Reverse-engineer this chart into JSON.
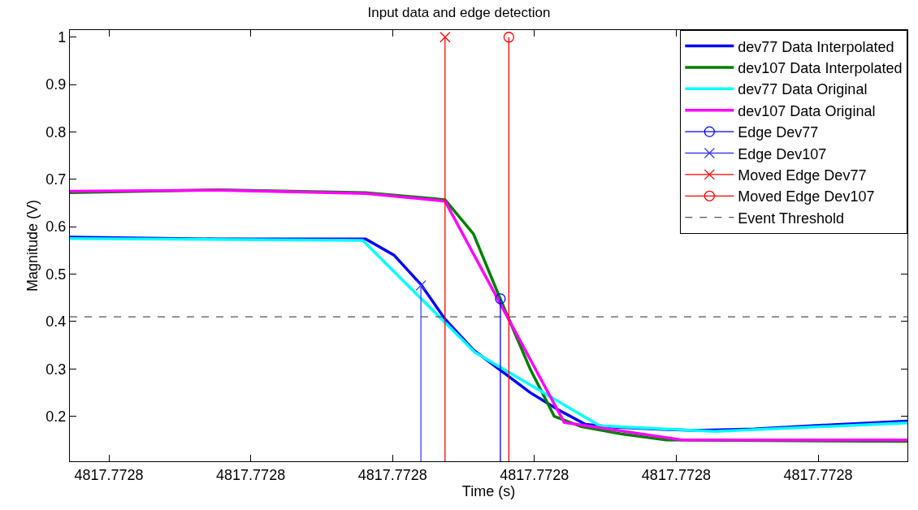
{
  "chart_data": {
    "type": "line",
    "title": "Input data and edge detection",
    "xlabel": "Time (s)",
    "ylabel": "Magnitude (V)",
    "xlim": [
      4817.77275725,
      4817.7728163
    ],
    "ylim": [
      0.105,
      1.015
    ],
    "xticks": [
      {
        "value": 4817.77276,
        "label": "4817.7728"
      },
      {
        "value": 4817.77277,
        "label": "4817.7728"
      },
      {
        "value": 4817.77278,
        "label": "4817.7728"
      },
      {
        "value": 4817.77279,
        "label": "4817.7728"
      },
      {
        "value": 4817.7728,
        "label": "4817.7728"
      },
      {
        "value": 4817.77281,
        "label": "4817.7728"
      }
    ],
    "yticks": [
      0.2,
      0.3,
      0.4,
      0.5,
      0.6,
      0.7,
      0.8,
      0.9,
      1
    ],
    "grid": false,
    "legend": "top right",
    "marker": "none",
    "line_style": "solid",
    "series": [
      {
        "name": "dev77 Data Interpolated",
        "color": "#0000ff",
        "x": [
          4817.77275725,
          4817.7727678,
          4817.7727781,
          4817.7727801,
          4817.772782,
          4817.7727837,
          4817.7727857,
          4817.7727877,
          4817.7727897,
          4817.7727916,
          4817.7727936,
          4817.7727956,
          4817.7727994,
          4817.7728014,
          4817.7728055,
          4817.7728096,
          4817.7728163
        ],
        "values": [
          0.578,
          0.574,
          0.574,
          0.54,
          0.478,
          0.405,
          0.34,
          0.295,
          0.25,
          0.215,
          0.183,
          0.177,
          0.172,
          0.17,
          0.173,
          0.18,
          0.19
        ]
      },
      {
        "name": "dev107 Data Interpolated",
        "color": "#008000",
        "x": [
          4817.77275725,
          4817.7727678,
          4817.7727781,
          4817.7727837,
          4817.7727857,
          4817.7727877,
          4817.7727897,
          4817.7727914,
          4817.7727933,
          4817.7727961,
          4817.7727993,
          4817.7728163
        ],
        "values": [
          0.672,
          0.678,
          0.672,
          0.657,
          0.585,
          0.44,
          0.3,
          0.2,
          0.178,
          0.163,
          0.15,
          0.147
        ]
      },
      {
        "name": "dev77 Data Original",
        "color": "#00ffff",
        "x": [
          4817.77275725,
          4817.7727779,
          4817.7727858,
          4817.7727946,
          4817.7728027,
          4817.7728163
        ],
        "values": [
          0.575,
          0.571,
          0.335,
          0.18,
          0.168,
          0.186
        ]
      },
      {
        "name": "dev107 Data Original",
        "color": "#ff00ff",
        "x": [
          4817.77275725,
          4817.7727678,
          4817.7727781,
          4817.7727837,
          4817.7727921,
          4817.7728004,
          4817.7728163
        ],
        "values": [
          0.675,
          0.677,
          0.67,
          0.654,
          0.187,
          0.15,
          0.15
        ]
      },
      {
        "name": "Edge Dev77",
        "type": "lollipop",
        "marker": "circle",
        "color": "#0000ff",
        "x": [
          4817.7727876
        ],
        "values": [
          0.448
        ]
      },
      {
        "name": "Edge Dev107",
        "type": "lollipop",
        "marker": "cross",
        "color": "#3f3fff",
        "x": [
          4817.772782
        ],
        "values": [
          0.476
        ]
      },
      {
        "name": "Moved Edge Dev77",
        "type": "lollipop",
        "marker": "cross",
        "color": "#ff0000",
        "x": [
          4817.7727837
        ],
        "values": [
          1
        ]
      },
      {
        "name": "Moved Edge Dev107",
        "type": "lollipop",
        "marker": "circle",
        "color": "#ff0000",
        "x": [
          4817.7727882
        ],
        "values": [
          1
        ]
      }
    ],
    "ref_lines": [
      {
        "axis": "y",
        "value": 0.41,
        "label": "Event Threshold",
        "color": "#555555",
        "line_style": "dashed"
      }
    ]
  }
}
